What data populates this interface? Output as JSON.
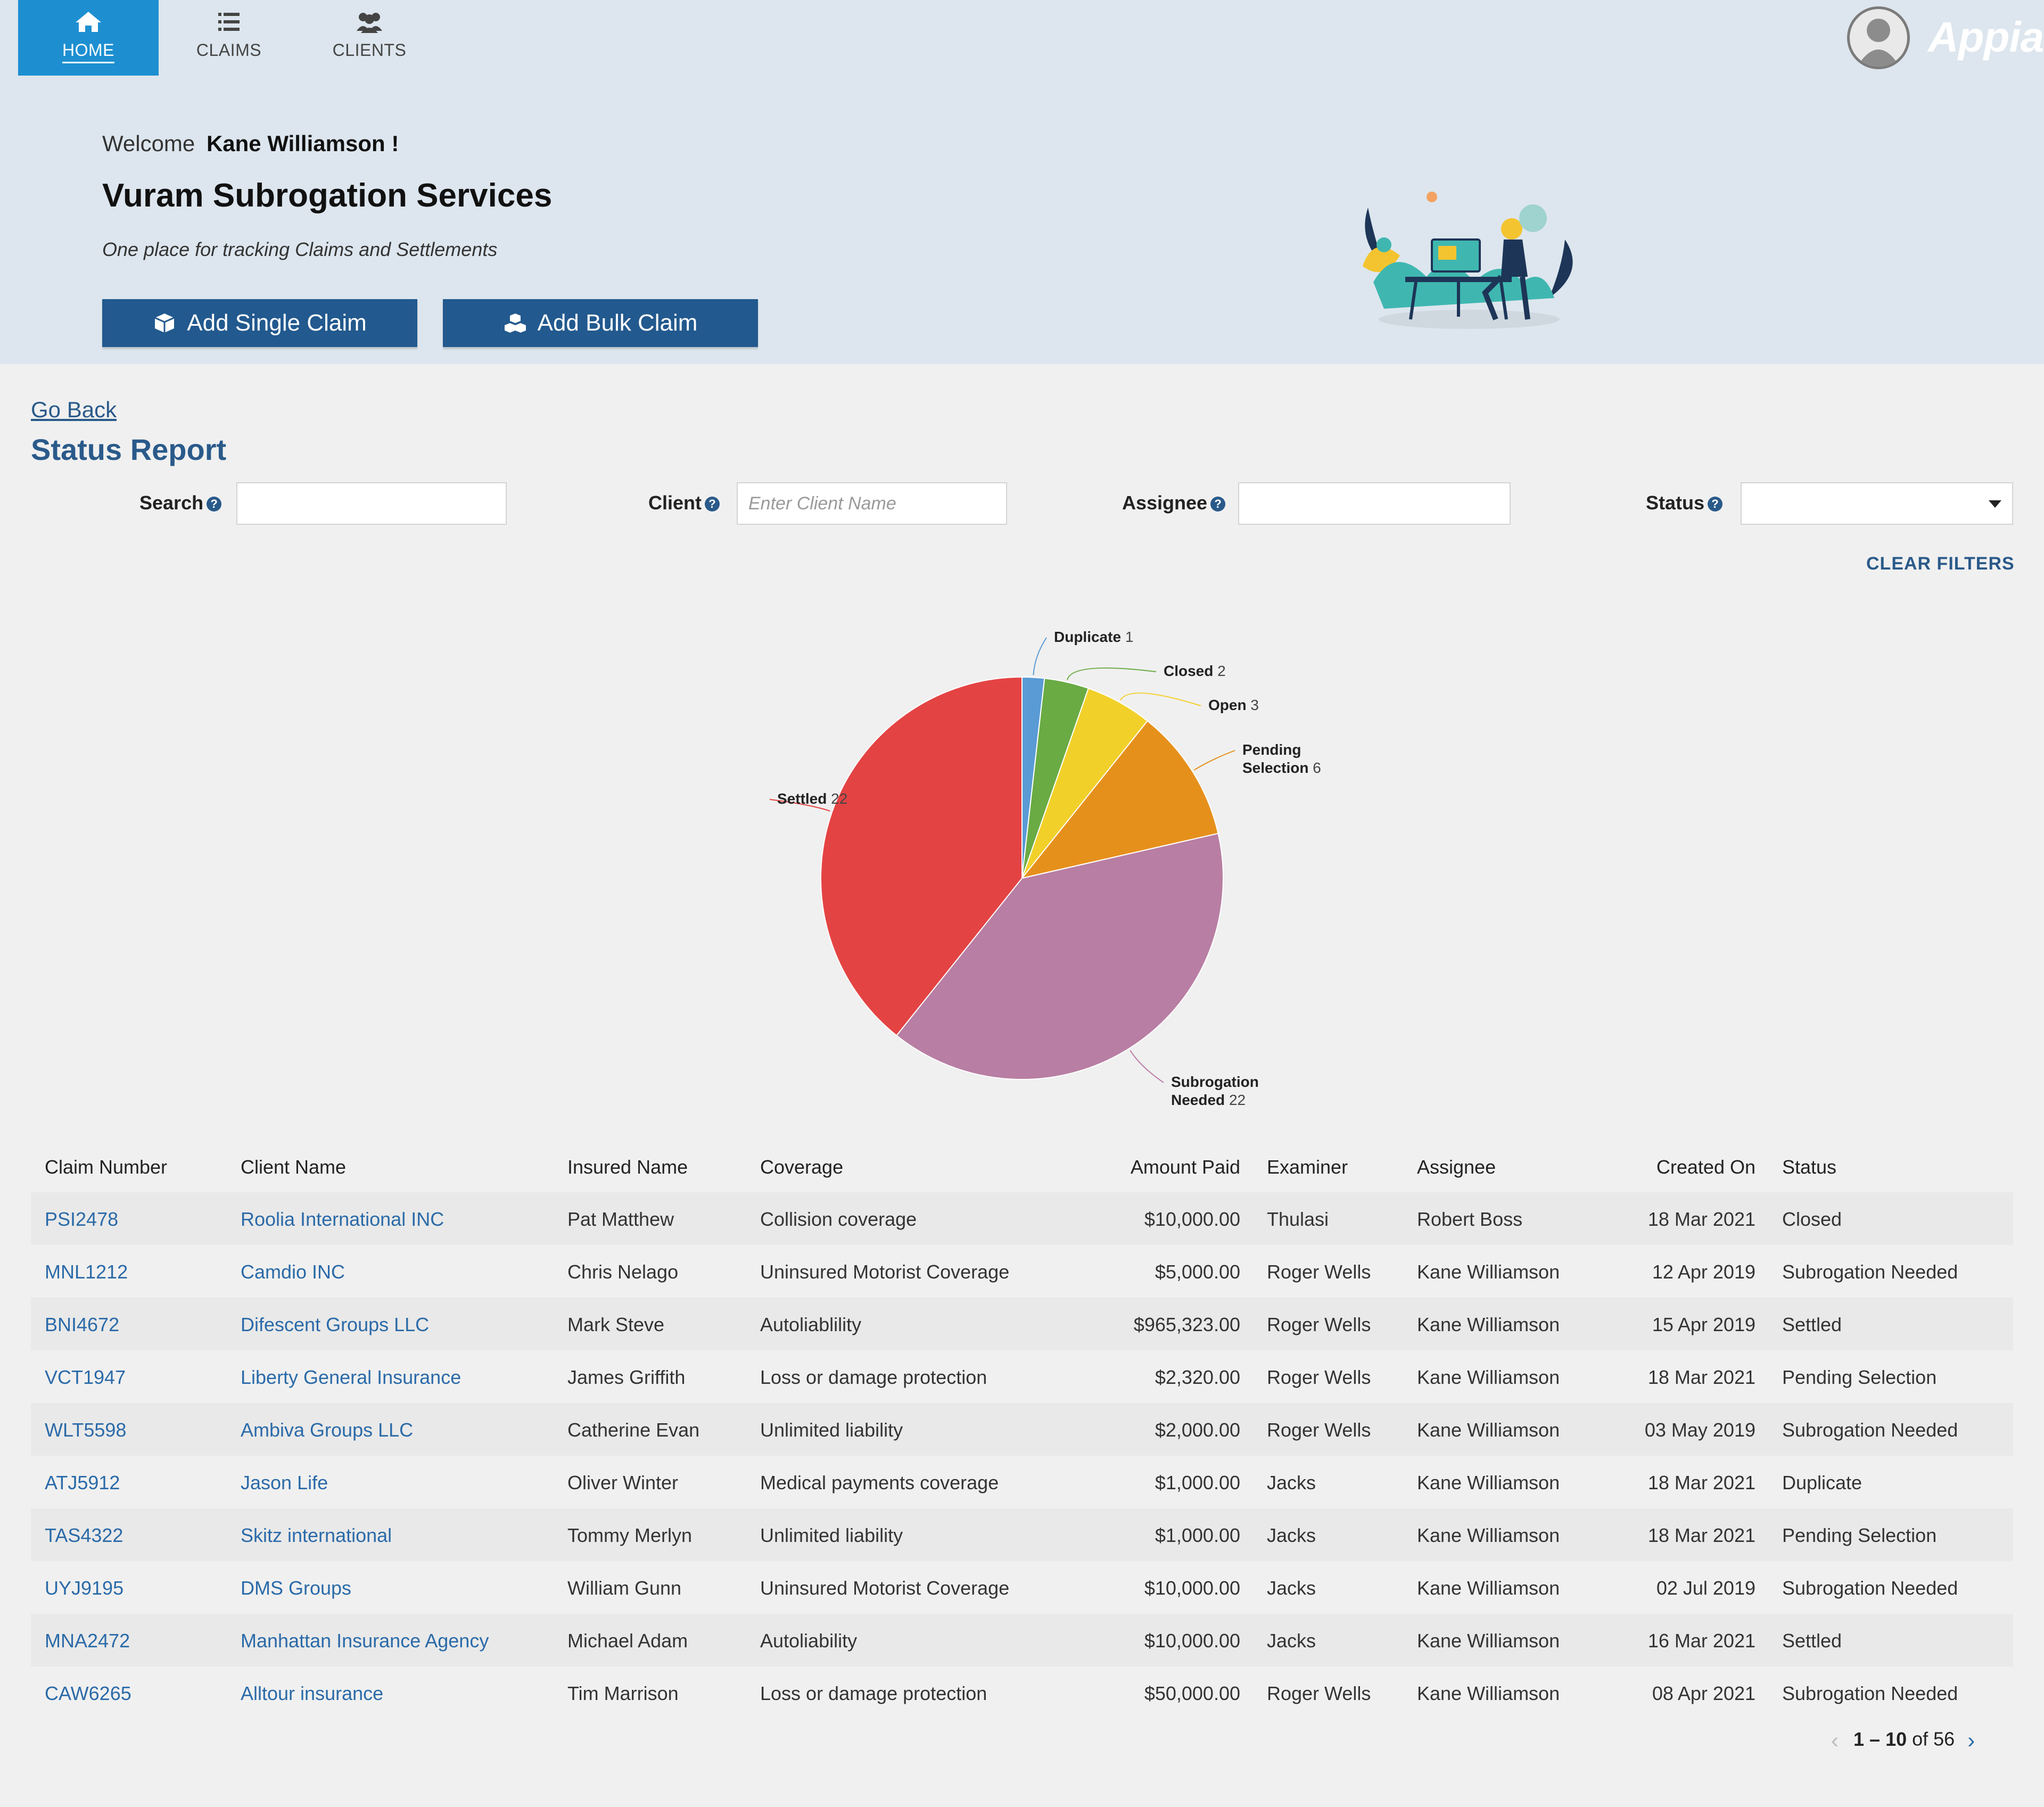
{
  "nav": {
    "tabs": [
      {
        "label": "HOME",
        "icon": "home-icon"
      },
      {
        "label": "CLAIMS",
        "icon": "list-icon"
      },
      {
        "label": "CLIENTS",
        "icon": "users-icon"
      }
    ],
    "logo": "Appian"
  },
  "hero": {
    "welcome_prefix": "Welcome",
    "user_name": "Kane Williamson !",
    "title": "Vuram Subrogation Services",
    "tagline": "One place for tracking Claims and Settlements",
    "add_single_label": "Add Single Claim",
    "add_bulk_label": "Add Bulk Claim"
  },
  "report": {
    "go_back": "Go Back",
    "title": "Status Report",
    "filters": {
      "search_label": "Search",
      "search_value": "",
      "client_label": "Client",
      "client_placeholder": "Enter Client Name",
      "assignee_label": "Assignee",
      "assignee_value": "",
      "status_label": "Status",
      "status_value": ""
    },
    "clear_filters": "CLEAR FILTERS"
  },
  "chart_data": {
    "type": "pie",
    "slices": [
      {
        "label": "Duplicate",
        "value": 1,
        "color": "#5a9bd5"
      },
      {
        "label": "Closed",
        "value": 2,
        "color": "#6aab44"
      },
      {
        "label": "Open",
        "value": 3,
        "color": "#f2d02a"
      },
      {
        "label": "Pending Selection",
        "value": 6,
        "color": "#e6901c"
      },
      {
        "label": "Subrogation Needed",
        "value": 22,
        "color": "#b87ea3"
      },
      {
        "label": "Settled",
        "value": 22,
        "color": "#e44343"
      }
    ]
  },
  "table": {
    "headers": [
      "Claim Number",
      "Client Name",
      "Insured Name",
      "Coverage",
      "Amount Paid",
      "Examiner",
      "Assignee",
      "Created On",
      "Status"
    ],
    "rows": [
      [
        "PSI2478",
        "Roolia International INC",
        "Pat Matthew",
        "Collision coverage",
        "$10,000.00",
        "Thulasi",
        "Robert Boss",
        "18 Mar 2021",
        "Closed"
      ],
      [
        "MNL1212",
        "Camdio INC",
        "Chris Nelago",
        "Uninsured Motorist Coverage",
        "$5,000.00",
        "Roger Wells",
        "Kane Williamson",
        "12 Apr 2019",
        "Subrogation Needed"
      ],
      [
        "BNI4672",
        "Difescent Groups LLC",
        "Mark Steve",
        "Autoliablility",
        "$965,323.00",
        "Roger Wells",
        "Kane Williamson",
        "15 Apr 2019",
        "Settled"
      ],
      [
        "VCT1947",
        "Liberty General Insurance",
        "James Griffith",
        "Loss or damage protection",
        "$2,320.00",
        "Roger Wells",
        "Kane Williamson",
        "18 Mar 2021",
        "Pending Selection"
      ],
      [
        "WLT5598",
        "Ambiva Groups LLC",
        "Catherine Evan",
        "Unlimited liability",
        "$2,000.00",
        "Roger Wells",
        "Kane Williamson",
        "03 May 2019",
        "Subrogation Needed"
      ],
      [
        "ATJ5912",
        "Jason Life",
        "Oliver Winter",
        "Medical payments coverage",
        "$1,000.00",
        "Jacks",
        "Kane Williamson",
        "18 Mar 2021",
        "Duplicate"
      ],
      [
        "TAS4322",
        "Skitz international",
        "Tommy Merlyn",
        "Unlimited liability",
        "$1,000.00",
        "Jacks",
        "Kane Williamson",
        "18 Mar 2021",
        "Pending Selection"
      ],
      [
        "UYJ9195",
        "DMS Groups",
        "William Gunn",
        "Uninsured Motorist Coverage",
        "$10,000.00",
        "Jacks",
        "Kane Williamson",
        "02 Jul 2019",
        "Subrogation Needed"
      ],
      [
        "MNA2472",
        "Manhattan Insurance Agency",
        "Michael Adam",
        "Autoliability",
        "$10,000.00",
        "Jacks",
        "Kane Williamson",
        "16 Mar 2021",
        "Settled"
      ],
      [
        "CAW6265",
        "Alltour insurance",
        "Tim Marrison",
        "Loss or damage protection",
        "$50,000.00",
        "Roger Wells",
        "Kane Williamson",
        "08 Apr 2021",
        "Subrogation Needed"
      ]
    ]
  },
  "pager": {
    "range": "1 – 10",
    "of_label": "of 56"
  },
  "colors": {
    "accent": "#1d8fd1",
    "button": "#22598e",
    "link": "#2a6aa8",
    "header_bg": "#dde6ee"
  }
}
